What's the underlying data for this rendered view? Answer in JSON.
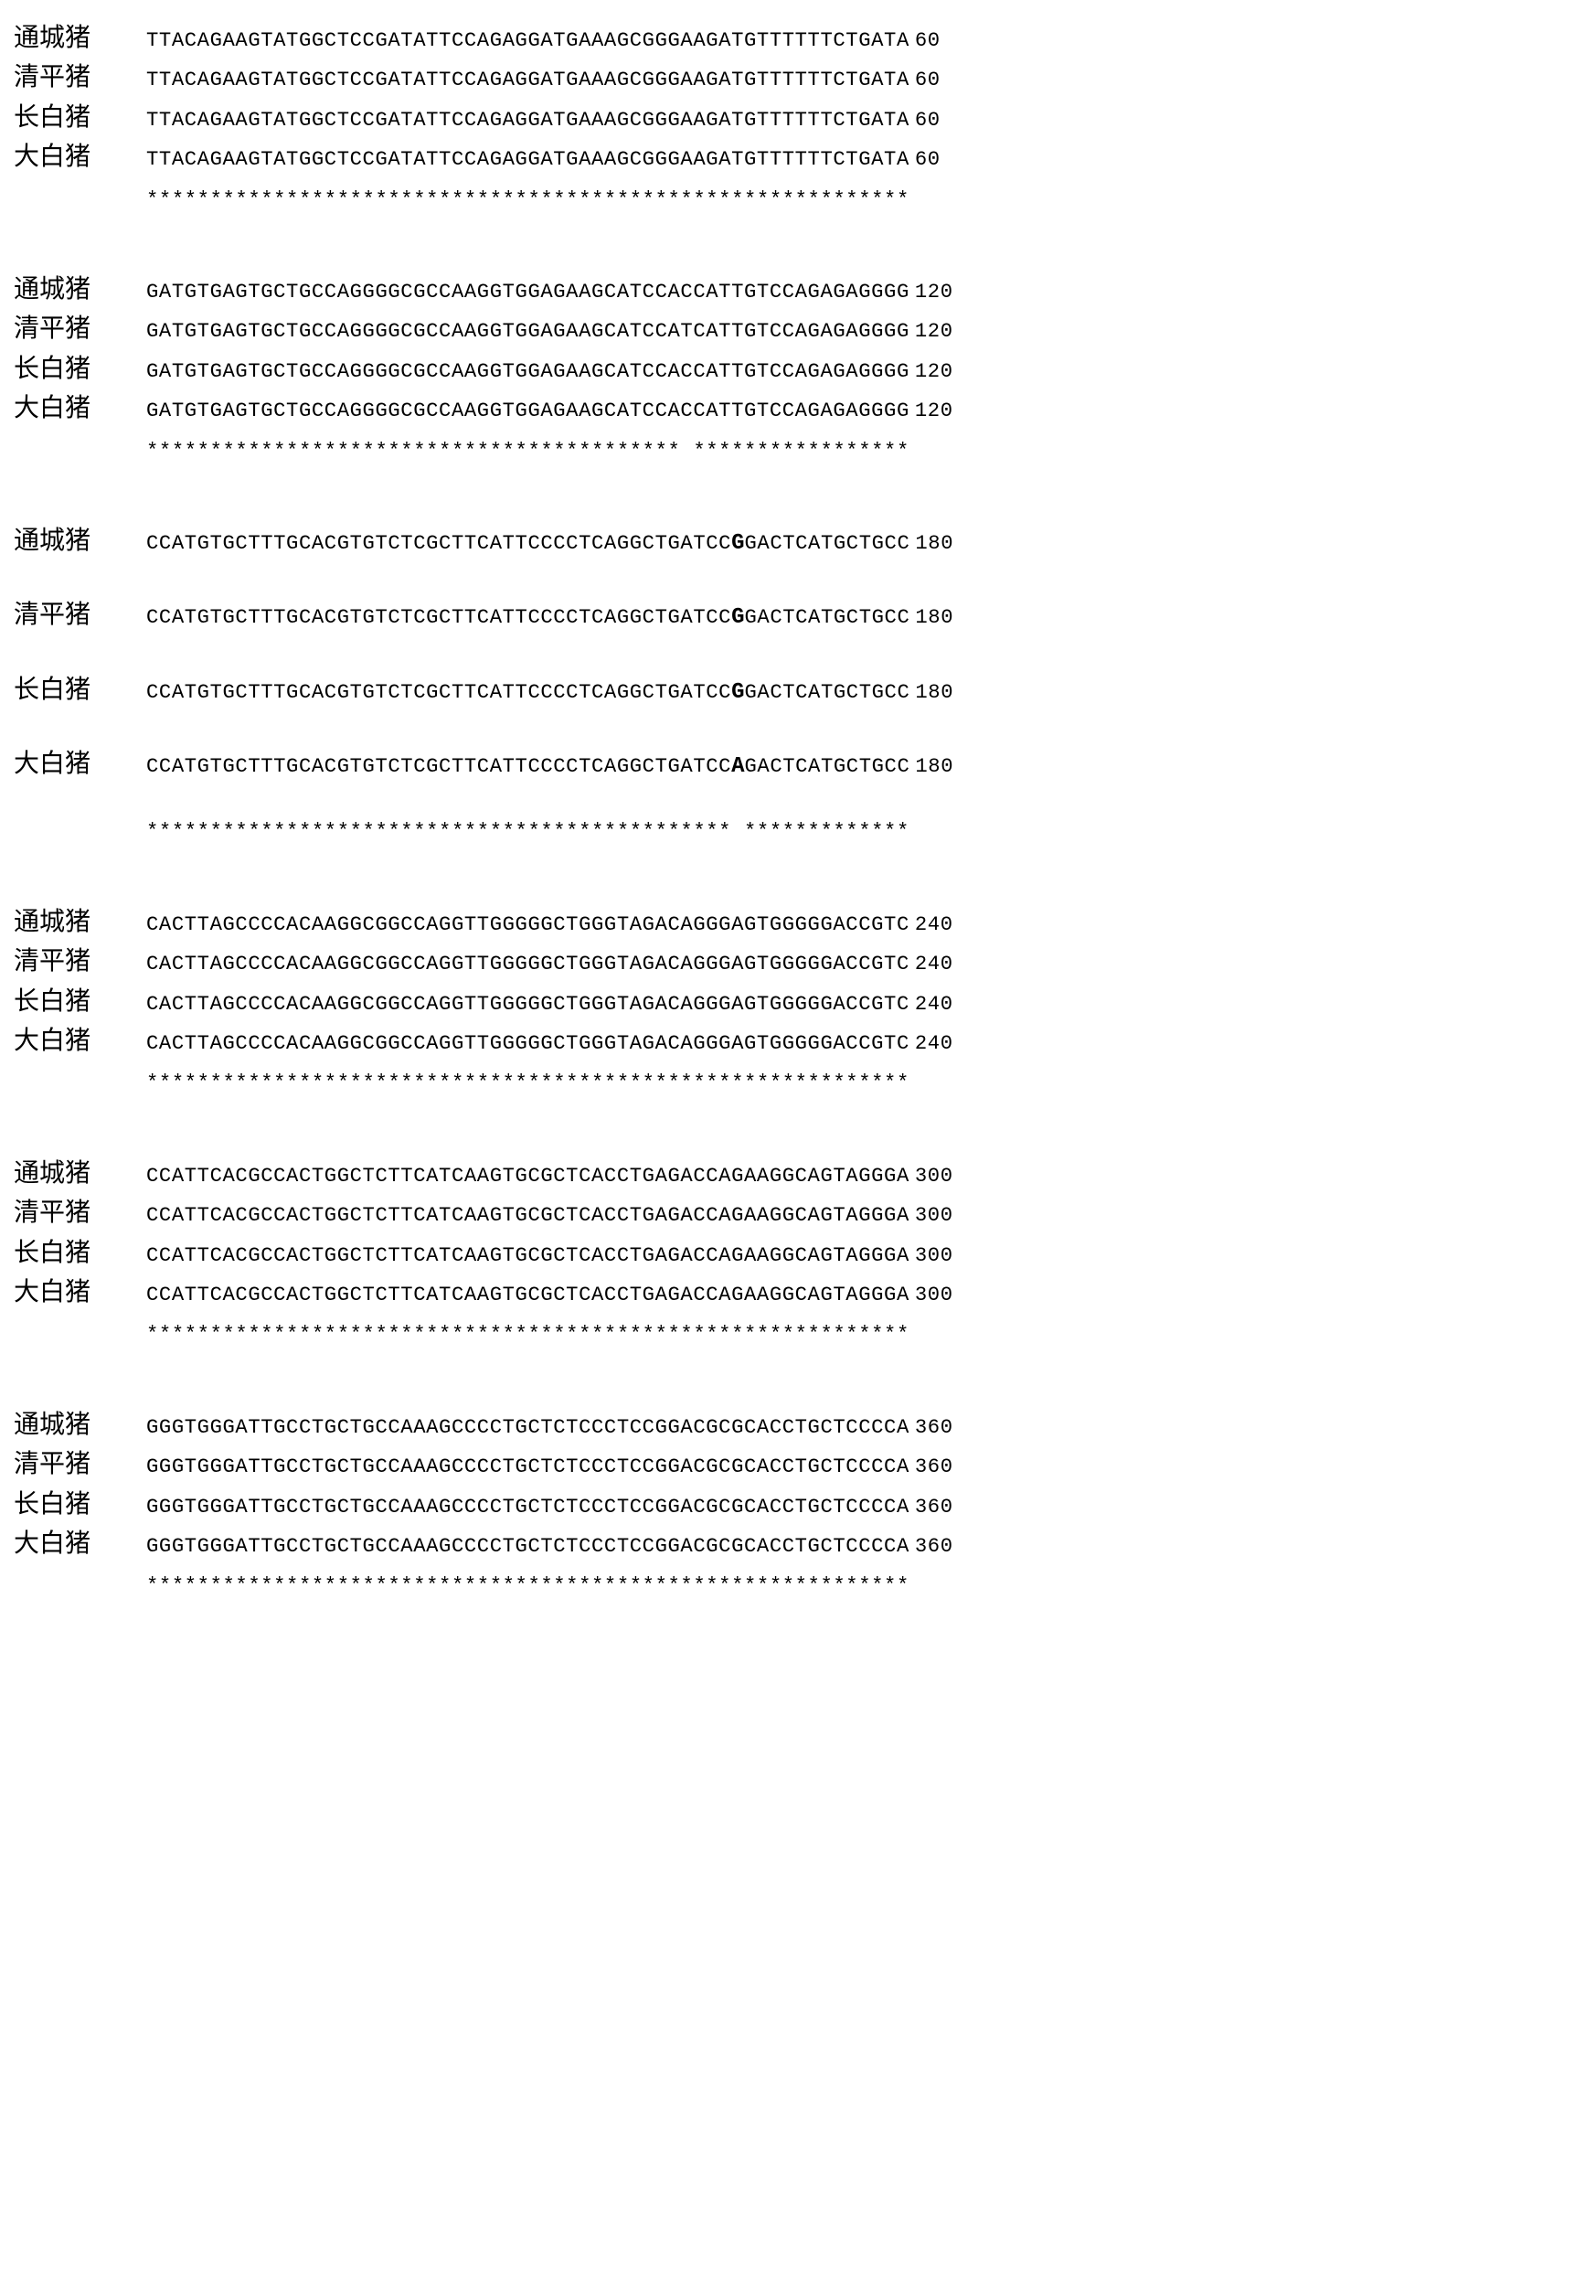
{
  "labels": {
    "tongcheng": "通城猪",
    "qingping": "清平猪",
    "changbai": "长白猪",
    "dabai": "大白猪"
  },
  "blocks": [
    {
      "type": "normal",
      "rows": [
        {
          "label": "tongcheng",
          "seq": "TTACAGAAGTATGGCTCCGATATTCCAGAGGATGAAAGCGGGAAGATGTTTTTTCTGATA",
          "pos": "60"
        },
        {
          "label": "qingping",
          "seq": "TTACAGAAGTATGGCTCCGATATTCCAGAGGATGAAAGCGGGAAGATGTTTTTTCTGATA",
          "pos": "60"
        },
        {
          "label": "changbai",
          "seq": "TTACAGAAGTATGGCTCCGATATTCCAGAGGATGAAAGCGGGAAGATGTTTTTTCTGATA",
          "pos": "60"
        },
        {
          "label": "dabai",
          "seq": "TTACAGAAGTATGGCTCCGATATTCCAGAGGATGAAAGCGGGAAGATGTTTTTTCTGATA",
          "pos": "60"
        }
      ],
      "stars": "************************************************************"
    },
    {
      "type": "normal",
      "rows": [
        {
          "label": "tongcheng",
          "seq": "GATGTGAGTGCTGCCAGGGGCGCCAAGGTGGAGAAGCATCCACCATTGTCCAGAGAGGGG",
          "pos": "120"
        },
        {
          "label": "qingping",
          "seq": "GATGTGAGTGCTGCCAGGGGCGCCAAGGTGGAGAAGCATCCATCATTGTCCAGAGAGGGG",
          "pos": "120"
        },
        {
          "label": "changbai",
          "seq": "GATGTGAGTGCTGCCAGGGGCGCCAAGGTGGAGAAGCATCCACCATTGTCCAGAGAGGGG",
          "pos": "120"
        },
        {
          "label": "dabai",
          "seq": "GATGTGAGTGCTGCCAGGGGCGCCAAGGTGGAGAAGCATCCACCATTGTCCAGAGAGGGG",
          "pos": "120"
        }
      ],
      "stars": "****************************************** *****************"
    },
    {
      "type": "spaced",
      "rows": [
        {
          "label": "tongcheng",
          "pre": "CCATGTGCTTTGCACGTGTCTCGCTTCATTCCCCTCAGGCTGATCC",
          "bold": "G",
          "post": "GACTCATGCTGCC",
          "pos": "180"
        },
        {
          "label": "qingping",
          "pre": "CCATGTGCTTTGCACGTGTCTCGCTTCATTCCCCTCAGGCTGATCC",
          "bold": "G",
          "post": "GACTCATGCTGCC",
          "pos": "180"
        },
        {
          "label": "changbai",
          "pre": "CCATGTGCTTTGCACGTGTCTCGCTTCATTCCCCTCAGGCTGATCC",
          "bold": "G",
          "post": "GACTCATGCTGCC",
          "pos": "180"
        },
        {
          "label": "dabai",
          "pre": "CCATGTGCTTTGCACGTGTCTCGCTTCATTCCCCTCAGGCTGATCC",
          "bold": "A",
          "post": "GACTCATGCTGCC",
          "pos": "180"
        }
      ],
      "stars": "********************************************** *************"
    },
    {
      "type": "normal",
      "rows": [
        {
          "label": "tongcheng",
          "seq": "CACTTAGCCCCACAAGGCGGCCAGGTTGGGGGCTGGGTAGACAGGGAGTGGGGGACCGTC",
          "pos": "240"
        },
        {
          "label": "qingping",
          "seq": "CACTTAGCCCCACAAGGCGGCCAGGTTGGGGGCTGGGTAGACAGGGAGTGGGGGACCGTC",
          "pos": "240"
        },
        {
          "label": "changbai",
          "seq": "CACTTAGCCCCACAAGGCGGCCAGGTTGGGGGCTGGGTAGACAGGGAGTGGGGGACCGTC",
          "pos": "240"
        },
        {
          "label": "dabai",
          "seq": "CACTTAGCCCCACAAGGCGGCCAGGTTGGGGGCTGGGTAGACAGGGAGTGGGGGACCGTC",
          "pos": "240"
        }
      ],
      "stars": "************************************************************"
    },
    {
      "type": "normal",
      "rows": [
        {
          "label": "tongcheng",
          "seq": "CCATTCACGCCACTGGCTCTTCATCAAGTGCGCTCACCTGAGACCAGAAGGCAGTAGGGA",
          "pos": "300"
        },
        {
          "label": "qingping",
          "seq": "CCATTCACGCCACTGGCTCTTCATCAAGTGCGCTCACCTGAGACCAGAAGGCAGTAGGGA",
          "pos": "300"
        },
        {
          "label": "changbai",
          "seq": "CCATTCACGCCACTGGCTCTTCATCAAGTGCGCTCACCTGAGACCAGAAGGCAGTAGGGA",
          "pos": "300"
        },
        {
          "label": "dabai",
          "seq": "CCATTCACGCCACTGGCTCTTCATCAAGTGCGCTCACCTGAGACCAGAAGGCAGTAGGGA",
          "pos": "300"
        }
      ],
      "stars": "************************************************************"
    },
    {
      "type": "normal",
      "last": true,
      "rows": [
        {
          "label": "tongcheng",
          "seq": "GGGTGGGATTGCCTGCTGCCAAAGCCCCTGCTCTCCCTCCGGACGCGCACCTGCTCCCCA",
          "pos": "360"
        },
        {
          "label": "qingping",
          "seq": "GGGTGGGATTGCCTGCTGCCAAAGCCCCTGCTCTCCCTCCGGACGCGCACCTGCTCCCCA",
          "pos": "360"
        },
        {
          "label": "changbai",
          "seq": "GGGTGGGATTGCCTGCTGCCAAAGCCCCTGCTCTCCCTCCGGACGCGCACCTGCTCCCCA",
          "pos": "360"
        },
        {
          "label": "dabai",
          "seq": "GGGTGGGATTGCCTGCTGCCAAAGCCCCTGCTCTCCCTCCGGACGCGCACCTGCTCCCCA",
          "pos": "360"
        }
      ],
      "stars": "************************************************************"
    }
  ]
}
